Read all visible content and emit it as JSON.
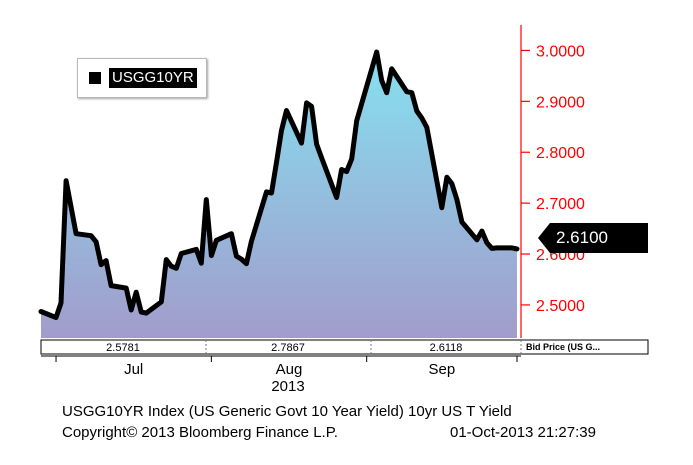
{
  "legend": {
    "label": "USGG10YR"
  },
  "current_value": "2.6100",
  "info_strip": {
    "values": [
      "2.5781",
      "2.7867",
      "2.6118"
    ],
    "label": "Bid Price (US G..."
  },
  "footer": {
    "title": "USGG10YR Index (US Generic Govt 10 Year Yield) 10yr US T Yield",
    "copyright": "Copyright© 2013 Bloomberg Finance L.P.",
    "timestamp": "01-Oct-2013 21:27:39"
  },
  "colors": {
    "axis": "#ff0000",
    "line": "#000000",
    "fill_top": "#86e0f0",
    "fill_bottom": "#a29ccb"
  },
  "chart_data": {
    "type": "area",
    "title": "USGG10YR Index (US Generic Govt 10 Year Yield) 10yr US T Yield",
    "series": [
      {
        "name": "USGG10YR",
        "x": [
          "2013-06-28",
          "2013-07-01",
          "2013-07-02",
          "2013-07-03",
          "2013-07-05",
          "2013-07-08",
          "2013-07-09",
          "2013-07-10",
          "2013-07-11",
          "2013-07-12",
          "2013-07-15",
          "2013-07-16",
          "2013-07-17",
          "2013-07-18",
          "2013-07-19",
          "2013-07-22",
          "2013-07-23",
          "2013-07-24",
          "2013-07-25",
          "2013-07-26",
          "2013-07-29",
          "2013-07-30",
          "2013-07-31",
          "2013-08-01",
          "2013-08-02",
          "2013-08-05",
          "2013-08-06",
          "2013-08-07",
          "2013-08-08",
          "2013-08-09",
          "2013-08-12",
          "2013-08-13",
          "2013-08-14",
          "2013-08-15",
          "2013-08-16",
          "2013-08-19",
          "2013-08-20",
          "2013-08-21",
          "2013-08-22",
          "2013-08-23",
          "2013-08-26",
          "2013-08-27",
          "2013-08-28",
          "2013-08-29",
          "2013-08-30",
          "2013-09-03",
          "2013-09-04",
          "2013-09-05",
          "2013-09-06",
          "2013-09-09",
          "2013-09-10",
          "2013-09-11",
          "2013-09-12",
          "2013-09-13",
          "2013-09-16",
          "2013-09-17",
          "2013-09-18",
          "2013-09-19",
          "2013-09-20",
          "2013-09-23",
          "2013-09-24",
          "2013-09-25",
          "2013-09-26",
          "2013-09-27",
          "2013-09-30",
          "2013-10-01"
        ],
        "values": [
          2.487,
          2.475,
          2.504,
          2.744,
          2.64,
          2.636,
          2.624,
          2.579,
          2.587,
          2.538,
          2.533,
          2.49,
          2.525,
          2.486,
          2.484,
          2.506,
          2.589,
          2.576,
          2.572,
          2.601,
          2.609,
          2.582,
          2.707,
          2.597,
          2.627,
          2.64,
          2.596,
          2.59,
          2.581,
          2.625,
          2.722,
          2.72,
          2.78,
          2.843,
          2.882,
          2.818,
          2.897,
          2.89,
          2.816,
          2.789,
          2.711,
          2.766,
          2.762,
          2.787,
          2.862,
          2.997,
          2.941,
          2.917,
          2.964,
          2.919,
          2.917,
          2.881,
          2.867,
          2.849,
          2.691,
          2.751,
          2.738,
          2.707,
          2.663,
          2.628,
          2.645,
          2.622,
          2.611,
          2.612,
          2.612,
          2.61
        ]
      }
    ],
    "x_ticks": [
      "Jul",
      "Aug",
      "Sep"
    ],
    "x_sublabel": "2013",
    "y_ticks": [
      "2.5000",
      "2.6000",
      "2.7000",
      "2.8000",
      "2.9000",
      "3.0000"
    ],
    "ylim": [
      2.435,
      3.05
    ],
    "grid": false,
    "legend_position": "top-left"
  }
}
